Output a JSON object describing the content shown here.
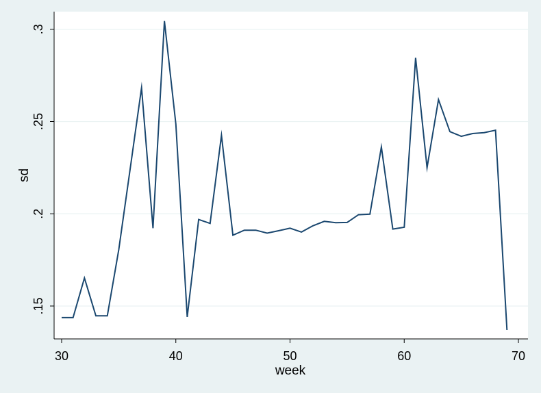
{
  "chart_data": {
    "type": "line",
    "xlabel": "week",
    "ylabel": "sd",
    "xlim": [
      30,
      70
    ],
    "ylim": [
      0.137,
      0.304
    ],
    "x_ticks": [
      30,
      40,
      50,
      60,
      70
    ],
    "x_tick_labels": [
      "30",
      "40",
      "50",
      "60",
      "70"
    ],
    "y_ticks": [
      0.15,
      0.2,
      0.25,
      0.3
    ],
    "y_tick_labels": [
      ".15",
      ".2",
      ".25",
      ".3"
    ],
    "grid": "horizontal",
    "legend": "none",
    "colors": {
      "line": "#1a476f",
      "plot_bg": "#ffffff",
      "page_bg": "#eaf2f3",
      "grid": "#eaf2f3"
    },
    "series": [
      {
        "x": [
          30,
          31,
          32,
          33,
          34,
          35,
          36,
          37,
          38,
          39,
          40,
          41,
          42,
          43,
          44,
          45,
          46,
          47,
          48,
          49,
          50,
          51,
          52,
          53,
          54,
          55,
          56,
          57,
          58,
          59,
          60,
          61,
          62,
          63,
          64,
          65,
          66,
          67,
          68,
          69
        ],
        "values": [
          0.1437,
          0.1437,
          0.1652,
          0.1447,
          0.1447,
          0.1805,
          0.2244,
          0.2683,
          0.1922,
          0.3045,
          0.2486,
          0.1441,
          0.1969,
          0.1948,
          0.2425,
          0.1884,
          0.1911,
          0.1911,
          0.1895,
          0.1908,
          0.1922,
          0.1901,
          0.1935,
          0.1959,
          0.1952,
          0.1953,
          0.1995,
          0.1998,
          0.2362,
          0.1917,
          0.1927,
          0.2845,
          0.225,
          0.2619,
          0.2445,
          0.242,
          0.2435,
          0.244,
          0.2453,
          0.137
        ]
      }
    ]
  }
}
